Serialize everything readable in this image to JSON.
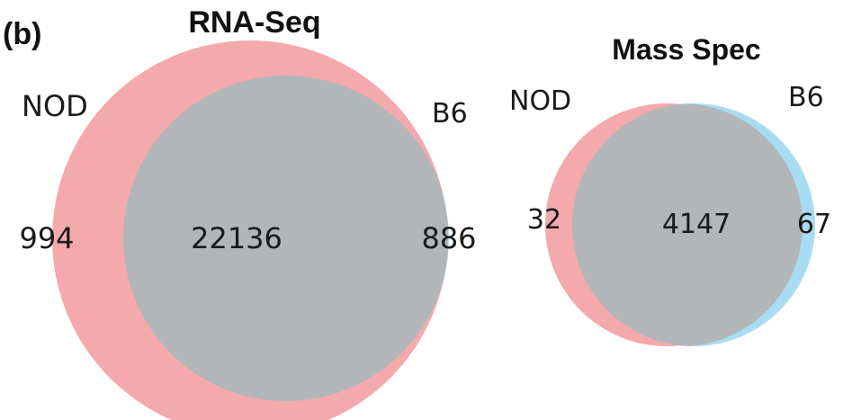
{
  "panel_label": "(b)",
  "colors": {
    "nod": "#f4a9ad",
    "b6": "#a8dcf2",
    "overlap": "#b2b6b8",
    "text": "#1a1a1a"
  },
  "diagrams": [
    {
      "title": "RNA-Seq",
      "left_set": "NOD",
      "right_set": "B6",
      "left_only": "994",
      "overlap": "22136",
      "right_only": "886"
    },
    {
      "title": "Mass Spec",
      "left_set": "NOD",
      "right_set": "B6",
      "left_only": "32",
      "overlap": "4147",
      "right_only": "67"
    }
  ]
}
